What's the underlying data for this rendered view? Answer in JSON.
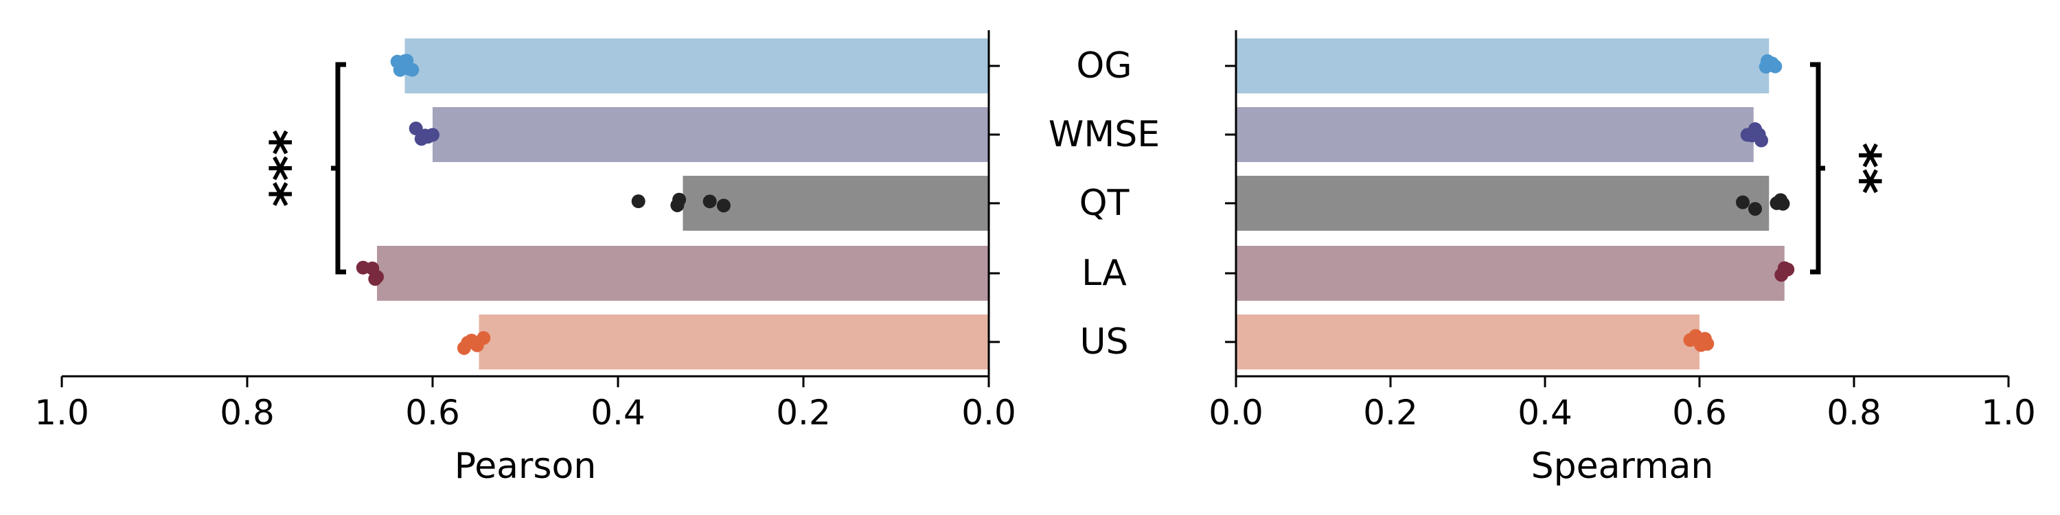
{
  "chart_data": [
    {
      "type": "bar",
      "orientation": "horizontal",
      "xlabel": "Pearson",
      "xlim": [
        1.0,
        0.0
      ],
      "x_reversed": true,
      "xticks": [
        1.0,
        0.8,
        0.6,
        0.4,
        0.2,
        0.0
      ],
      "xtick_labels": [
        "1.0",
        "0.8",
        "0.6",
        "0.4",
        "0.2",
        "0.0"
      ],
      "categories": [
        "OG",
        "WMSE",
        "QT",
        "LA",
        "US"
      ],
      "values": [
        0.63,
        0.6,
        0.33,
        0.66,
        0.55
      ],
      "points": [
        [
          0.625,
          0.628,
          0.632,
          0.635,
          0.638,
          0.622,
          0.63
        ],
        [
          0.6,
          0.608,
          0.612,
          0.618,
          0.605
        ],
        [
          0.378,
          0.336,
          0.334,
          0.301,
          0.286
        ],
        [
          0.675,
          0.665,
          0.66,
          0.662
        ],
        [
          0.545,
          0.552,
          0.558,
          0.562,
          0.566
        ]
      ],
      "significance": {
        "label": "***",
        "from": "OG",
        "to": "LA",
        "side": "left"
      }
    },
    {
      "type": "bar",
      "orientation": "horizontal",
      "xlabel": "Spearman",
      "xlim": [
        0.0,
        1.0
      ],
      "xticks": [
        0.0,
        0.2,
        0.4,
        0.6,
        0.8,
        1.0
      ],
      "xtick_labels": [
        "0.0",
        "0.2",
        "0.4",
        "0.6",
        "0.8",
        "1.0"
      ],
      "categories": [
        "OG",
        "WMSE",
        "QT",
        "LA",
        "US"
      ],
      "values": [
        0.69,
        0.67,
        0.69,
        0.71,
        0.6
      ],
      "points": [
        [
          0.686,
          0.69,
          0.694,
          0.698,
          0.688
        ],
        [
          0.662,
          0.668,
          0.672,
          0.677,
          0.68
        ],
        [
          0.656,
          0.672,
          0.7,
          0.705,
          0.708
        ],
        [
          0.706,
          0.71,
          0.714
        ],
        [
          0.588,
          0.595,
          0.602,
          0.607,
          0.61
        ]
      ],
      "significance": {
        "label": "**",
        "from": "OG",
        "to": "LA",
        "side": "right"
      }
    }
  ],
  "colors": {
    "bars": [
      "#a7c7df",
      "#a3a3bc",
      "#8c8c8c",
      "#b5979f",
      "#e6b3a2"
    ],
    "points": [
      "#4c97cf",
      "#4b4a8f",
      "#222222",
      "#7a2a3e",
      "#e0643a"
    ],
    "axis": "#000000"
  }
}
